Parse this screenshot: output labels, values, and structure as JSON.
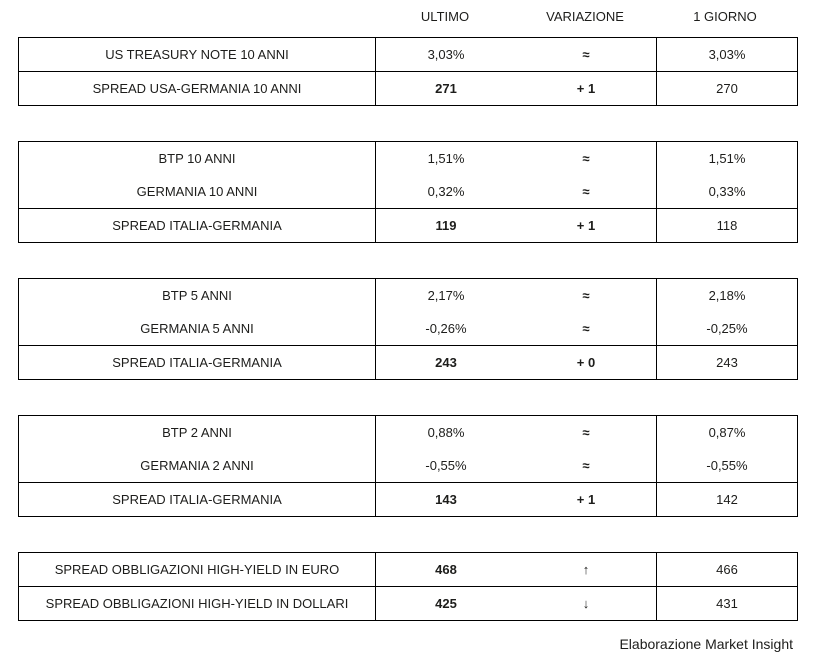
{
  "header": {
    "ultimo": "ULTIMO",
    "variazione": "VARIAZIONE",
    "giorno": "1 GIORNO"
  },
  "tables": [
    {
      "id": "usa-10-anni",
      "rows": [
        {
          "label": "US TREASURY NOTE 10 ANNI",
          "ultimo": "3,03%",
          "variazione": "≈",
          "variazione_type": "unchanged",
          "giorno": "3,03%"
        },
        {
          "label": "SPREAD USA-GERMANIA 10 ANNI",
          "ultimo": "271",
          "variazione": "+ 1",
          "variazione_type": "up",
          "giorno": "270"
        }
      ]
    },
    {
      "id": "italia-10-anni",
      "rows": [
        {
          "label": "BTP 10 ANNI",
          "ultimo": "1,51%",
          "variazione": "≈",
          "variazione_type": "unchanged",
          "giorno": "1,51%"
        },
        {
          "label": "GERMANIA 10 ANNI",
          "ultimo": "0,32%",
          "variazione": "≈",
          "variazione_type": "unchanged",
          "giorno": "0,33%"
        },
        {
          "label": "SPREAD ITALIA-GERMANIA",
          "ultimo": "119",
          "variazione": "+ 1",
          "variazione_type": "up",
          "giorno": "118"
        }
      ]
    },
    {
      "id": "italia-5-anni",
      "rows": [
        {
          "label": "BTP 5 ANNI",
          "ultimo": "2,17%",
          "variazione": "≈",
          "variazione_type": "unchanged",
          "giorno": "2,18%"
        },
        {
          "label": "GERMANIA 5 ANNI",
          "ultimo": "-0,26%",
          "variazione": "≈",
          "variazione_type": "unchanged",
          "giorno": "-0,25%"
        },
        {
          "label": "SPREAD ITALIA-GERMANIA",
          "ultimo": "243",
          "variazione": "+ 0",
          "variazione_type": "flat",
          "giorno": "243"
        }
      ]
    },
    {
      "id": "italia-2-anni",
      "rows": [
        {
          "label": "BTP 2 ANNI",
          "ultimo": "0,88%",
          "variazione": "≈",
          "variazione_type": "unchanged",
          "giorno": "0,87%"
        },
        {
          "label": "GERMANIA 2 ANNI",
          "ultimo": "-0,55%",
          "variazione": "≈",
          "variazione_type": "unchanged",
          "giorno": "-0,55%"
        },
        {
          "label": "SPREAD ITALIA-GERMANIA",
          "ultimo": "143",
          "variazione": "+ 1",
          "variazione_type": "up",
          "giorno": "142"
        }
      ]
    },
    {
      "id": "high-yield",
      "rows": [
        {
          "label": "SPREAD OBBLIGAZIONI HIGH-YIELD IN EURO",
          "ultimo": "468",
          "variazione": "↑",
          "variazione_type": "up",
          "giorno": "466"
        },
        {
          "label": "SPREAD OBBLIGAZIONI HIGH-YIELD IN DOLLARI",
          "ultimo": "425",
          "variazione": "↓",
          "variazione_type": "down",
          "giorno": "431"
        }
      ]
    }
  ],
  "footer": {
    "credit": "Elaborazione Market Insight"
  },
  "colors": {
    "unchanged_teal": "#2097b4",
    "up_red": "#e30613",
    "flat_black": "#1d1d1b",
    "down_green": "#2da44e",
    "border": "#000000",
    "text": "#1d1d1b"
  }
}
